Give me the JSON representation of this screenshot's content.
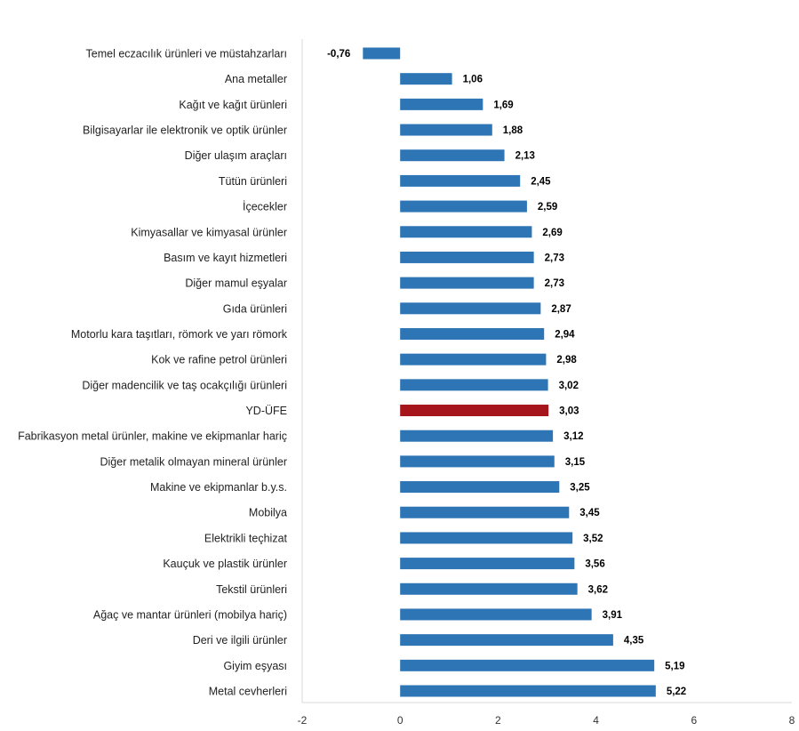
{
  "chart_data": {
    "type": "bar",
    "orientation": "horizontal",
    "title": "",
    "xlabel": "",
    "ylabel": "",
    "xlim": [
      -2,
      8
    ],
    "xticks": [
      "-2",
      "0",
      "2",
      "4",
      "6",
      "8"
    ],
    "grid": false,
    "legend": "none",
    "colors": {
      "default": "#2E75B6",
      "highlight": "#A6151B",
      "axis": "#D9D9D9"
    },
    "highlight_category": "YD-ÜFE",
    "categories": [
      "Temel eczacılık ürünleri ve müstahzarları",
      "Ana metaller",
      "Kağıt ve kağıt ürünleri",
      "Bilgisayarlar ile elektronik ve optik ürünler",
      "Diğer ulaşım araçları",
      "Tütün ürünleri",
      "İçecekler",
      "Kimyasallar ve kimyasal ürünler",
      "Basım ve kayıt hizmetleri",
      "Diğer mamul eşyalar",
      "Gıda ürünleri",
      "Motorlu kara taşıtları, römork ve yarı römork",
      "Kok ve rafine petrol ürünleri",
      "Diğer madencilik ve taş ocakçılığı ürünleri",
      "YD-ÜFE",
      "Fabrikasyon metal ürünler, makine ve ekipmanlar hariç",
      "Diğer metalik olmayan mineral ürünler",
      "Makine ve ekipmanlar b.y.s.",
      "Mobilya",
      "Elektrikli teçhizat",
      "Kauçuk ve plastik ürünler",
      "Tekstil ürünleri",
      "Ağaç ve mantar ürünleri (mobilya hariç)",
      "Deri ve ilgili ürünler",
      "Giyim eşyası",
      "Metal cevherleri"
    ],
    "values": [
      -0.76,
      1.06,
      1.69,
      1.88,
      2.13,
      2.45,
      2.59,
      2.69,
      2.73,
      2.73,
      2.87,
      2.94,
      2.98,
      3.02,
      3.03,
      3.12,
      3.15,
      3.25,
      3.45,
      3.52,
      3.56,
      3.62,
      3.91,
      4.35,
      5.19,
      5.22
    ],
    "value_labels": [
      "-0,76",
      "1,06",
      "1,69",
      "1,88",
      "2,13",
      "2,45",
      "2,59",
      "2,69",
      "2,73",
      "2,73",
      "2,87",
      "2,94",
      "2,98",
      "3,02",
      "3,03",
      "3,12",
      "3,15",
      "3,25",
      "3,45",
      "3,52",
      "3,56",
      "3,62",
      "3,91",
      "4,35",
      "5,19",
      "5,22"
    ]
  }
}
